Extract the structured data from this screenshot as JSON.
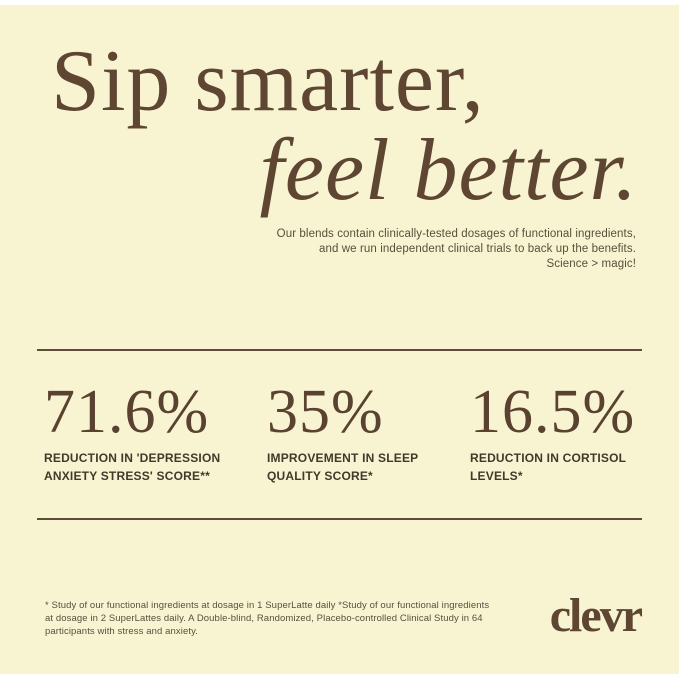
{
  "theme": {
    "background": "#f8f4d2",
    "heading_brown": "#5e4632",
    "stat_brown": "#5a4230",
    "label_dark": "#42392b",
    "body_brown": "#5a4e3a",
    "rule_brown": "#5d4c38",
    "edge_band": "#ffffff"
  },
  "headline": {
    "line1": "Sip smarter,",
    "line2": "feel better.",
    "subtext_lines": [
      "Our blends contain clinically-tested dosages of functional ingredients,",
      "and we run independent clinical trials to back up the benefits.",
      "Science > magic!"
    ]
  },
  "stats": {
    "items": [
      {
        "value": "71.6%",
        "label": "REDUCTION IN 'DEPRESSION ANXIETY STRESS' SCORE**"
      },
      {
        "value": "35%",
        "label": "IMPROVEMENT IN SLEEP QUALITY SCORE*"
      },
      {
        "value": "16.5%",
        "label": "REDUCTION IN CORTISOL LEVELS*"
      }
    ]
  },
  "footnote_lines": [
    "* Study of our functional ingredients at dosage in 1 SuperLatte daily *Study of our functional ingredients",
    "at dosage in 2 SuperLattes daily. A Double-blind, Randomized, Placebo-controlled Clinical Study in 64",
    "participants with stress and anxiety."
  ],
  "brand": {
    "logo_text": "clevr"
  }
}
